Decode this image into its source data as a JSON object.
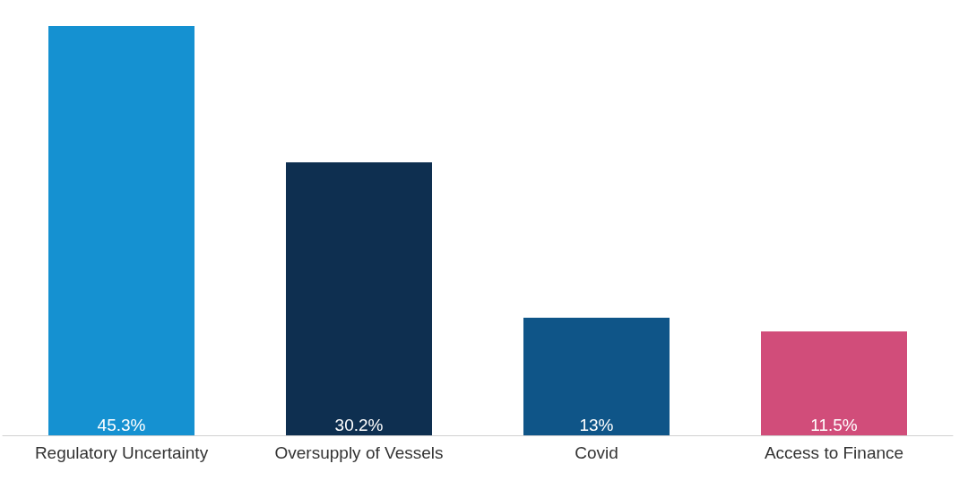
{
  "chart_data": {
    "type": "bar",
    "categories": [
      "Regulatory Uncertainty",
      "Oversupply of Vessels",
      "Covid",
      "Access to Finance"
    ],
    "values": [
      45.3,
      30.2,
      13,
      11.5
    ],
    "colors": [
      "#1591d1",
      "#0e2f50",
      "#0f5588",
      "#d14d7a"
    ],
    "value_labels": [
      "45.3%",
      "30.2%",
      "13%",
      "11.5%"
    ]
  }
}
